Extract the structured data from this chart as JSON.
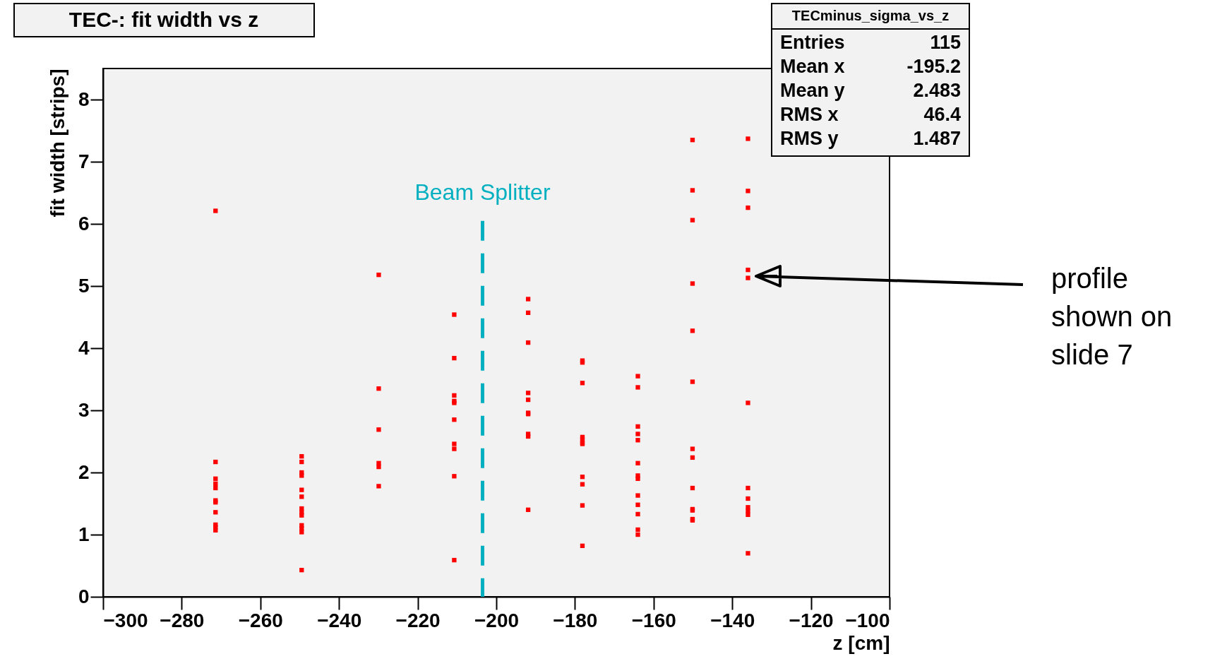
{
  "chart_data": {
    "type": "scatter",
    "title": "TEC-: fit width vs z",
    "xlabel": "z [cm]",
    "ylabel": "fit width [strips]",
    "xlim": [
      -300,
      -100
    ],
    "xticks": [
      -300,
      -280,
      -260,
      -240,
      -220,
      -200,
      -180,
      -160,
      -140,
      -120,
      -100
    ],
    "ylim": [
      0,
      8.5
    ],
    "yticks": [
      0,
      1,
      2,
      3,
      4,
      5,
      6,
      7,
      8
    ],
    "marker": "square",
    "grid": false,
    "series": [
      {
        "color": "#ff0000",
        "x": [
          -271.4,
          -271.4,
          -271.4,
          -271.4,
          -271.4,
          -271.4,
          -271.4,
          -271.4,
          -271.4,
          -271.4,
          -271.4,
          -249.5,
          -249.5,
          -249.5,
          -249.5,
          -249.5,
          -249.5,
          -249.5,
          -249.5,
          -249.5,
          -249.5,
          -249.5,
          -249.5,
          -249.5,
          -229.9,
          -229.9,
          -229.9,
          -229.9,
          -229.9,
          -229.9,
          -210.7,
          -210.7,
          -210.7,
          -210.7,
          -210.7,
          -210.7,
          -210.7,
          -210.7,
          -210.7,
          -210.7,
          -191.9,
          -191.9,
          -191.9,
          -191.9,
          -191.9,
          -191.9,
          -191.9,
          -191.9,
          -191.9,
          -191.9,
          -178.1,
          -178.1,
          -178.1,
          -178.1,
          -178.1,
          -178.1,
          -178.1,
          -178.1,
          -178.1,
          -178.1,
          -178.1,
          -164.0,
          -164.0,
          -164.0,
          -164.0,
          -164.0,
          -164.0,
          -164.0,
          -164.0,
          -164.0,
          -164.0,
          -164.0,
          -164.0,
          -164.0,
          -150.1,
          -150.1,
          -150.1,
          -150.1,
          -150.1,
          -150.1,
          -150.1,
          -150.1,
          -150.1,
          -150.1,
          -150.1,
          -150.1,
          -150.1,
          -136.0,
          -136.0,
          -136.0,
          -136.0,
          -136.0,
          -136.0,
          -136.0,
          -136.0,
          -136.0,
          -136.0,
          -136.0,
          -136.0
        ],
        "values": [
          6.21,
          2.17,
          1.9,
          1.82,
          1.75,
          1.55,
          1.52,
          1.36,
          1.16,
          1.12,
          1.07,
          2.26,
          2.17,
          2.0,
          1.95,
          1.72,
          1.61,
          1.42,
          1.36,
          1.31,
          1.15,
          1.1,
          1.04,
          0.43,
          5.18,
          3.35,
          2.69,
          2.15,
          2.09,
          1.78,
          4.54,
          3.84,
          3.24,
          3.15,
          3.12,
          2.85,
          2.46,
          2.38,
          1.94,
          0.59,
          4.79,
          4.57,
          4.09,
          3.28,
          3.17,
          2.96,
          2.94,
          2.62,
          2.58,
          1.4,
          3.8,
          3.77,
          3.44,
          2.57,
          2.53,
          2.48,
          2.46,
          1.93,
          1.81,
          1.47,
          0.82,
          3.55,
          3.37,
          2.74,
          2.62,
          2.52,
          2.15,
          1.95,
          1.9,
          1.63,
          1.48,
          1.33,
          1.08,
          1.0,
          7.35,
          6.54,
          6.06,
          5.04,
          4.28,
          3.46,
          2.38,
          2.24,
          1.75,
          1.41,
          1.39,
          1.25,
          1.23,
          7.37,
          6.53,
          6.26,
          5.26,
          5.13,
          3.12,
          1.75,
          1.58,
          1.44,
          1.38,
          1.32,
          0.7
        ]
      }
    ],
    "ref_lines": [
      {
        "axis": "x",
        "value": -203.5,
        "label": "Beam Splitter",
        "color": "#00b0c0",
        "line_style": "dashed"
      }
    ],
    "annotations": [
      "TECminus_sigma_vs_z",
      "Entries 115",
      "Mean x -195.2",
      "Mean y 2.483",
      "RMS x 46.4",
      "RMS y 1.487",
      "profile shown on slide 7"
    ]
  }
}
